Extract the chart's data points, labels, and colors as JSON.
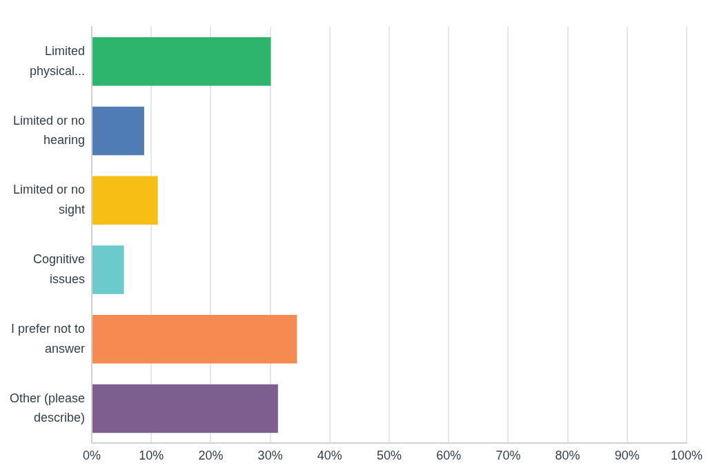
{
  "chart_data": {
    "type": "bar",
    "orientation": "horizontal",
    "categories": [
      "Limited physical...",
      "Limited or no hearing",
      "Limited or no sight",
      "Cognitive issues",
      "I prefer not to answer",
      "Other (please describe)"
    ],
    "values": [
      30.1,
      8.8,
      11.1,
      5.4,
      34.5,
      31.3
    ],
    "colors": [
      "#2db56d",
      "#507cb6",
      "#f7be16",
      "#6bcacb",
      "#f68b51",
      "#7d5e8f"
    ],
    "xlim": [
      0,
      100
    ],
    "xticks": [
      {
        "value": 0,
        "label": "0%"
      },
      {
        "value": 10,
        "label": "10%"
      },
      {
        "value": 20,
        "label": "20%"
      },
      {
        "value": 30,
        "label": "30%"
      },
      {
        "value": 40,
        "label": "40%"
      },
      {
        "value": 50,
        "label": "50%"
      },
      {
        "value": 60,
        "label": "60%"
      },
      {
        "value": 70,
        "label": "70%"
      },
      {
        "value": 80,
        "label": "80%"
      },
      {
        "value": 90,
        "label": "90%"
      },
      {
        "value": 100,
        "label": "100%"
      }
    ],
    "grid": "x",
    "legend": false
  }
}
